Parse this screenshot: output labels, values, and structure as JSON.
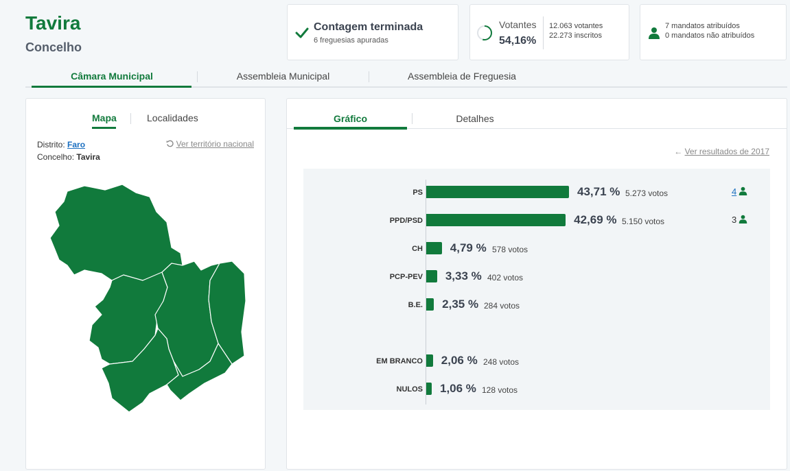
{
  "header": {
    "title": "Tavira",
    "subtitle": "Concelho"
  },
  "status": {
    "title": "Contagem terminada",
    "sub": "6 freguesias apuradas",
    "icon": "check-icon"
  },
  "turnout": {
    "label": "Votantes",
    "percent": "54,16%",
    "ratio": 0.5416,
    "voters": "12.063 votantes",
    "registered": "22.273 inscritos"
  },
  "mandates": {
    "assigned": "7 mandatos atribuídos",
    "unassigned": "0 mandatos não atribuídos",
    "icon": "person-icon"
  },
  "main_tabs": [
    "Câmara Municipal",
    "Assembleia Municipal",
    "Assembleia de Freguesia"
  ],
  "map_panel": {
    "tabs": [
      "Mapa",
      "Localidades"
    ],
    "district_label": "Distrito:",
    "district": "Faro",
    "municipality_label": "Concelho:",
    "municipality": "Tavira",
    "national_link": "Ver território nacional"
  },
  "results_panel": {
    "tabs": [
      "Gráfico",
      "Detalhes"
    ],
    "prev_link": "Ver resultados de 2017"
  },
  "colors": {
    "primary": "#117a3c",
    "link": "#1a6fc0",
    "chart_bg": "#f2f5f7"
  },
  "chart_data": {
    "type": "bar",
    "orientation": "horizontal",
    "categories": [
      "PS",
      "PPD/PSD",
      "CH",
      "PCP-PEV",
      "B.E.",
      "EM BRANCO",
      "NULOS"
    ],
    "values": [
      43.71,
      42.69,
      4.79,
      3.33,
      2.35,
      2.06,
      1.06
    ],
    "percent_labels": [
      "43,71 %",
      "42,69 %",
      "4,79 %",
      "3,33 %",
      "2,35 %",
      "2,06 %",
      "1,06 %"
    ],
    "votes": [
      "5.273 votos",
      "5.150 votos",
      "578 votos",
      "402 votos",
      "284 votos",
      "248 votos",
      "128 votos"
    ],
    "seats": [
      "4",
      "3",
      "",
      "",
      "",
      "",
      ""
    ],
    "unit": "%"
  }
}
